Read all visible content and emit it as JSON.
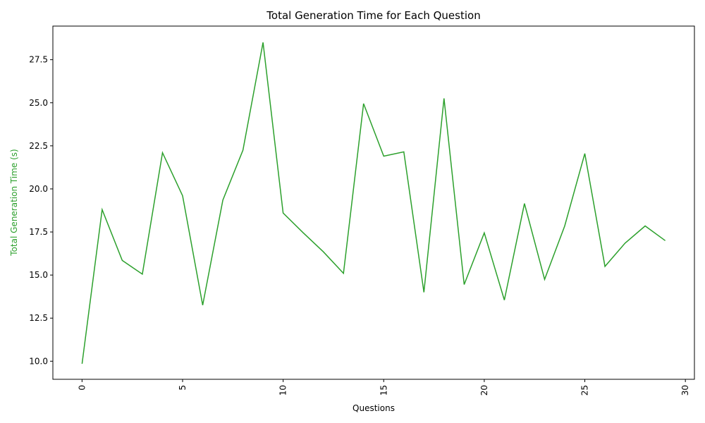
{
  "chart_data": {
    "type": "line",
    "title": "Total Generation Time for Each Question",
    "xlabel": "Questions",
    "ylabel": "Total Generation Time (s)",
    "xlim": [
      -1.45,
      30.45
    ],
    "ylim": [
      8.95,
      29.45
    ],
    "xticks": [
      0,
      5,
      10,
      15,
      20,
      25,
      30
    ],
    "yticks": [
      10.0,
      12.5,
      15.0,
      17.5,
      20.0,
      22.5,
      25.0,
      27.5
    ],
    "xtick_labels": [
      "0",
      "5",
      "10",
      "15",
      "20",
      "25",
      "30"
    ],
    "ytick_labels": [
      "10.0",
      "12.5",
      "15.0",
      "17.5",
      "20.0",
      "22.5",
      "25.0",
      "27.5"
    ],
    "xtick_rotation": "vertical",
    "grid": false,
    "legend": "none",
    "series": [
      {
        "color": "#2ca02c",
        "x": [
          0,
          1,
          2,
          3,
          4,
          5,
          6,
          7,
          8,
          9,
          10,
          11,
          12,
          13,
          14,
          15,
          16,
          17,
          18,
          19,
          20,
          21,
          22,
          23,
          24,
          25,
          26,
          27,
          28,
          29
        ],
        "y": [
          9.85,
          18.8,
          15.85,
          15.05,
          22.1,
          19.6,
          13.25,
          19.35,
          22.25,
          28.5,
          18.6,
          17.45,
          16.35,
          15.1,
          24.95,
          21.9,
          22.15,
          14.0,
          25.25,
          14.45,
          17.45,
          13.55,
          19.15,
          14.75,
          17.85,
          22.05,
          15.5,
          16.85,
          17.85,
          17.0
        ]
      }
    ]
  }
}
